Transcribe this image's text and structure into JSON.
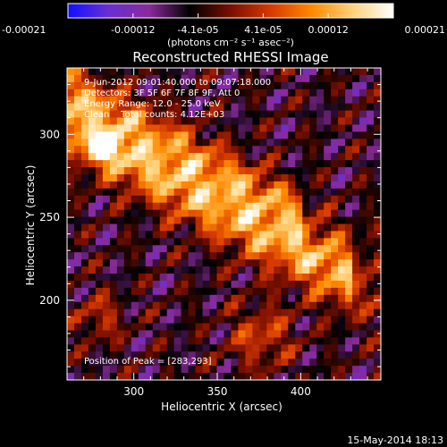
{
  "colorbar": {
    "tick_labels": [
      "-0.00021",
      "-0.00012",
      "-4.1e-05",
      "4.1e-05",
      "0.00012",
      "0.00021"
    ],
    "units_label": "(photons cm⁻² s⁻¹ asec⁻²)",
    "range": [
      -0.00021,
      0.00021
    ],
    "colors": [
      "#1010ff",
      "#6a2fd2",
      "#8a2a9a",
      "#000000",
      "#7a0f00",
      "#d83a00",
      "#ff8a00",
      "#ffd27a",
      "#ffffff"
    ]
  },
  "chart_data": {
    "type": "heatmap",
    "title": "Reconstructed RHESSI Image",
    "xlabel": "Heliocentric X (arcsec)",
    "ylabel": "Heliocentric Y (arcsec)",
    "xlim": [
      260,
      448
    ],
    "ylim": [
      152,
      340
    ],
    "x_ticks": [
      300,
      350,
      400
    ],
    "y_ticks": [
      200,
      250,
      300
    ],
    "grid": false,
    "annotations": [
      "9-Jun-2012 09:01:40.000 to 09:07:18.000",
      "Detectors: 3F 5F 6F 7F 8F 9F, Att 0",
      "Energy Range: 12.0 - 25.0 keV",
      "Clean    Total counts: 4.12E+03"
    ],
    "peak_label": "Position of Peak = [283,293]",
    "peak": [
      283,
      293
    ]
  },
  "footer": {
    "timestamp": "15-May-2014 18:13"
  }
}
